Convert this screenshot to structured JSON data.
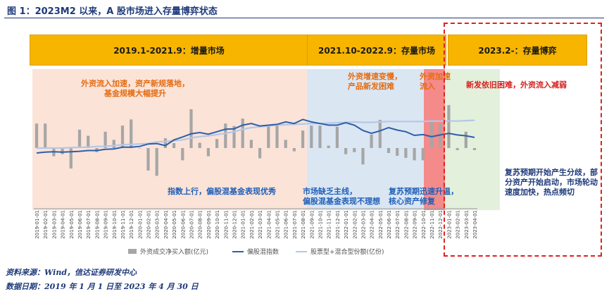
{
  "header": {
    "title": "图 1：2023M2 以来，A 股市场进入存量博弈状态"
  },
  "banners": [
    {
      "label": "2019.1-2021.9：增量市场"
    },
    {
      "label": "2021.10-2022.9：存量市场"
    },
    {
      "label": "2023.2-：存量博弈"
    }
  ],
  "annotations": {
    "a1": [
      "外资流入加速，资产新规落地，",
      "基金规模大幅提升"
    ],
    "a2": [
      "指数上行，偏股混基金表现优秀"
    ],
    "a3": [
      "外资增速变慢，",
      "产品新发困难"
    ],
    "a4": [
      "市场缺乏主线，",
      "偏股混基金表现不理想"
    ],
    "a5": [
      "外资加速",
      "流入"
    ],
    "a6": [
      "复苏预期迅速升温，",
      "核心资产修复"
    ],
    "a7": [
      "新发依旧困难，外资流入减弱"
    ],
    "a8": [
      "复苏预期开始产生分歧，部",
      "分资产开始启动，市场轮动",
      "速度加快，热点频切"
    ]
  },
  "legend": {
    "bar": "外资成交净买入额(亿元)",
    "line1": "偏股混指数",
    "line2": "股票型+混合型份额(亿份)"
  },
  "footer": {
    "source": "资料来源：Wind，信达证券研发中心",
    "date": "数据日期：2019 年 1 月 1 日至 2023 年 4 月 30 日"
  },
  "colors": {
    "bar": "#a6a6a6",
    "line1": "#2e5ea8",
    "line2": "#b4c8e6",
    "banner": "#f7b500"
  },
  "chart_data": {
    "type": "bar",
    "categories": [
      "2019-01-01",
      "2019-02-01",
      "2019-03-01",
      "2019-04-01",
      "2019-05-01",
      "2019-06-01",
      "2019-07-01",
      "2019-08-01",
      "2019-09-01",
      "2019-10-01",
      "2019-11-01",
      "2019-12-01",
      "2020-01-01",
      "2020-02-01",
      "2020-03-01",
      "2020-04-01",
      "2020-05-01",
      "2020-06-01",
      "2020-07-01",
      "2020-08-01",
      "2020-09-01",
      "2020-10-01",
      "2020-11-01",
      "2020-12-01",
      "2021-01-01",
      "2021-02-01",
      "2021-03-01",
      "2021-04-01",
      "2021-05-01",
      "2021-06-01",
      "2021-07-01",
      "2021-08-01",
      "2021-09-01",
      "2021-10-01",
      "2021-11-01",
      "2021-12-01",
      "2022-01-01",
      "2022-02-01",
      "2022-03-01",
      "2022-04-01",
      "2022-05-01",
      "2022-06-01",
      "2022-07-01",
      "2022-08-01",
      "2022-09-01",
      "2022-10-01",
      "2022-11-01",
      "2022-12-01",
      "2023-01-01",
      "2023-02-01",
      "2023-03-01",
      "2023-04-01"
    ],
    "series": [
      {
        "name": "外资成交净买入额(亿元)",
        "type": "bar",
        "values": [
          600,
          600,
          -200,
          -150,
          -500,
          450,
          300,
          -100,
          400,
          200,
          550,
          700,
          0,
          -550,
          -680,
          240,
          120,
          -300,
          950,
          130,
          -200,
          220,
          600,
          540,
          720,
          200,
          -250,
          540,
          550,
          200,
          -80,
          430,
          550,
          550,
          60,
          520,
          -150,
          -100,
          -400,
          330,
          690,
          -120,
          -190,
          -240,
          -300,
          -300,
          640,
          600,
          1050,
          -50,
          400,
          -50
        ]
      },
      {
        "name": "偏股混指数",
        "type": "line",
        "values": [
          -120,
          -100,
          -90,
          -100,
          -90,
          -80,
          -60,
          -60,
          -30,
          -20,
          20,
          20,
          40,
          100,
          110,
          60,
          200,
          270,
          350,
          380,
          340,
          400,
          460,
          470,
          560,
          600,
          540,
          560,
          580,
          640,
          600,
          700,
          640,
          600,
          560,
          560,
          620,
          560,
          430,
          360,
          420,
          500,
          440,
          400,
          310,
          330,
          280,
          320,
          360,
          320,
          300,
          260
        ]
      },
      {
        "name": "股票型+混合型份额(亿份)",
        "type": "line",
        "values": [
          0,
          0,
          0,
          0,
          10,
          20,
          20,
          40,
          40,
          60,
          80,
          90,
          100,
          110,
          150,
          160,
          180,
          200,
          250,
          280,
          300,
          330,
          360,
          400,
          460,
          500,
          520,
          540,
          560,
          570,
          580,
          590,
          600,
          600,
          610,
          620,
          630,
          640,
          630,
          630,
          640,
          650,
          650,
          650,
          650,
          650,
          660,
          660,
          660,
          660,
          670,
          680
        ]
      }
    ],
    "ylim": [
      -800,
      1200
    ],
    "grid": false,
    "legend_position": "bottom"
  }
}
